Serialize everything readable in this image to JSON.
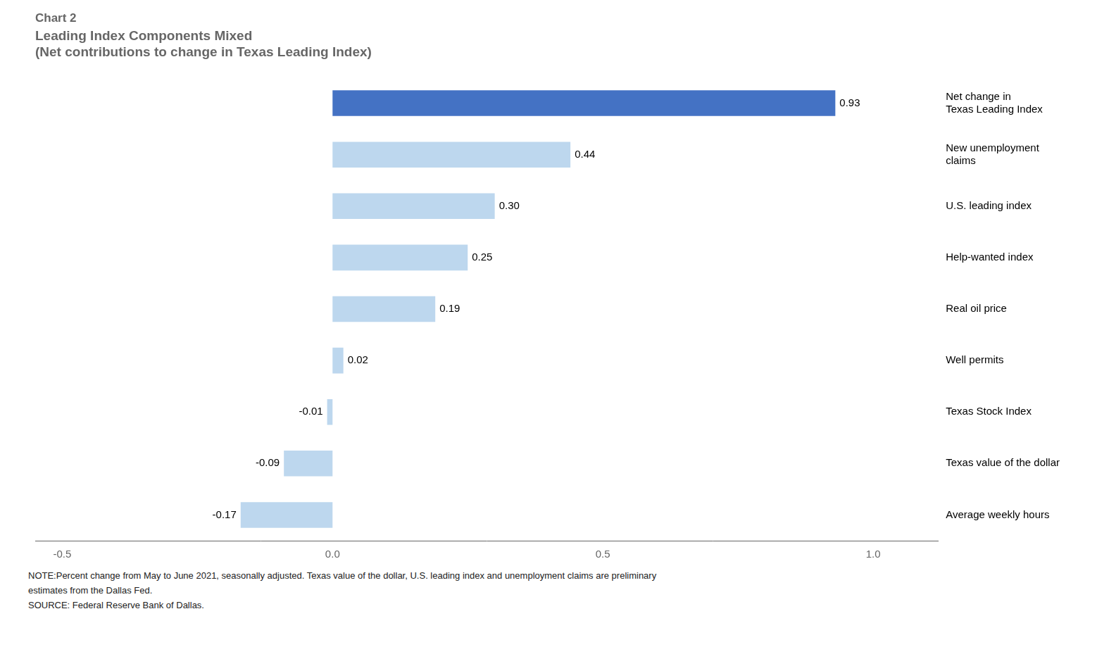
{
  "chart_data": {
    "type": "bar",
    "orientation": "horizontal",
    "title": "Chart 2",
    "subtitle": "Leading Index Components Mixed\n(Net contributions to change in Texas Leading Index)",
    "note": "NOTE:Percent change from May to June 2021, seasonally adjusted. Texas value of the dollar, U.S. leading index and unemployment claims are preliminary\nestimates from the Dallas Fed.\nSOURCE: Federal Reserve Bank of Dallas.",
    "categories": [
      "Net change in\nTexas Leading Index",
      "New unemployment\nclaims",
      "U.S. leading index",
      "Help-wanted index",
      "Real oil price",
      "Well permits",
      "Texas Stock Index",
      "Texas value of the dollar",
      "Average weekly hours"
    ],
    "values": [
      0.93,
      0.44,
      0.3,
      0.25,
      0.19,
      0.02,
      -0.01,
      -0.09,
      -0.17
    ],
    "value_labels": [
      "0.93",
      "0.44",
      "0.30",
      "0.25",
      "0.19",
      "0.02",
      "-0.01",
      "-0.09",
      "-0.17"
    ],
    "colors": [
      "#4472C4",
      "#BDD7EE",
      "#BDD7EE",
      "#BDD7EE",
      "#BDD7EE",
      "#BDD7EE",
      "#BDD7EE",
      "#BDD7EE",
      "#BDD7EE"
    ],
    "xlim": [
      -0.55,
      1.12
    ],
    "xticks": [
      -0.5,
      {
        "value": 0.0,
        "label": "0.0"
      },
      0.5,
      {
        "value": 1.0,
        "label": "1.0"
      }
    ],
    "grid": false,
    "data_labels": true
  }
}
